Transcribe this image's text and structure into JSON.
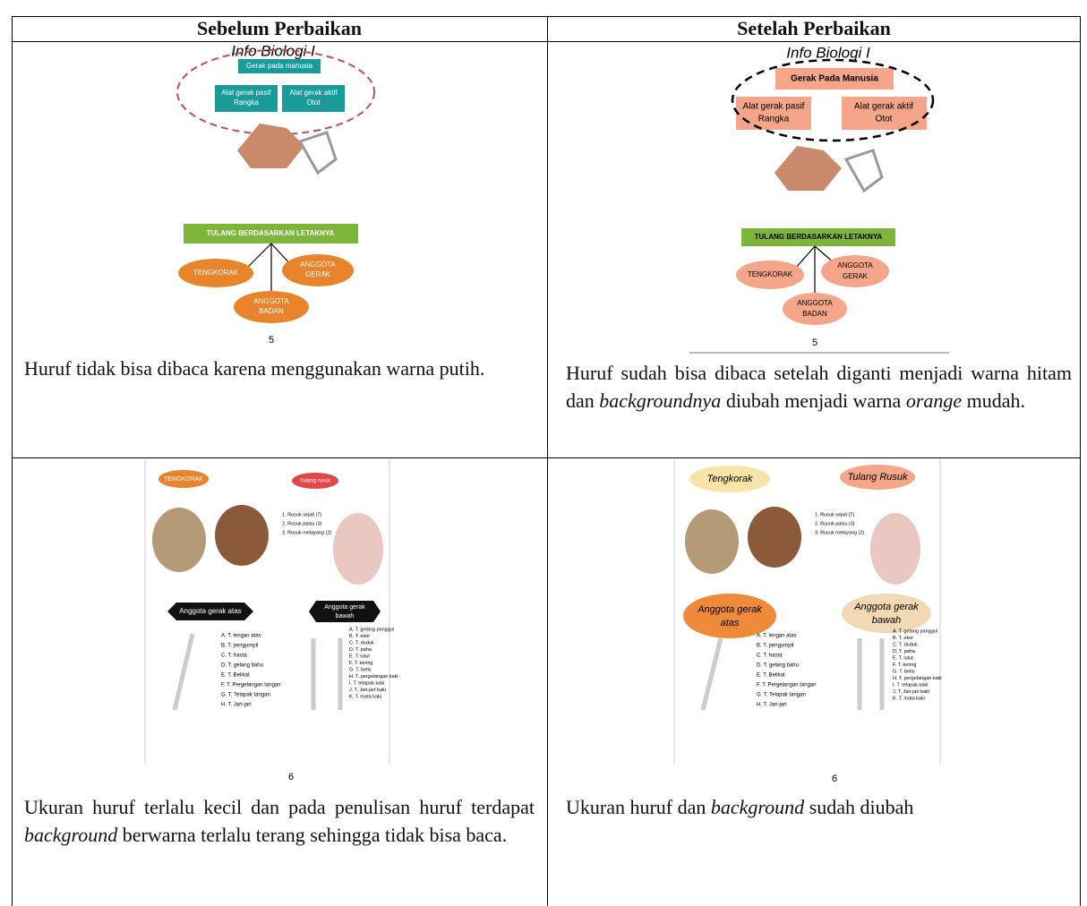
{
  "table": {
    "headers": [
      "Sebelum Perbaikan",
      "Setelah Perbaikan"
    ],
    "rows": [
      [
        {
          "slide": {
            "title": "Info Biologi I",
            "main": "Gerak pada manusia",
            "left_box": [
              "Alat gerak pasif",
              "Rangka"
            ],
            "right_box": [
              "Alat gerak aktif",
              "Otot"
            ],
            "banner": "TULANG BERDASARKAN LETAKNYA",
            "nodes": [
              "TENGKORAK",
              [
                "ANGGOTA",
                "GERAK"
              ],
              [
                "ANGGOTA",
                "BADAN"
              ]
            ],
            "page": "5"
          },
          "caption": [
            {
              "text": "Huruf tidak bisa dibaca karena menggunakan warna putih."
            }
          ]
        },
        {
          "slide": {
            "title": "Info Biologi I",
            "main": "Gerak Pada Manusia",
            "left_box": [
              "Alat gerak pasif",
              "Rangka"
            ],
            "right_box": [
              "Alat gerak aktif",
              "Otot"
            ],
            "banner": "TULANG BERDASARKAN LETAKNYA",
            "nodes": [
              "TENGKORAK",
              [
                "ANGGOTA",
                "GERAK"
              ],
              [
                "ANGGOTA",
                "BADAN"
              ]
            ],
            "page": "5"
          },
          "caption": [
            {
              "text": "Huruf sudah bisa dibaca setelah diganti menjadi warna hitam dan "
            },
            {
              "text": "backgroundnya",
              "italic": true
            },
            {
              "text": " diubah menjadi warna "
            },
            {
              "text": "orange",
              "italic": true
            },
            {
              "text": " mudah."
            }
          ]
        }
      ],
      [
        {
          "slide": {
            "skull": "TENGKORAK",
            "ribs": "Tulang rusuk",
            "rib_list": [
              "1. Rusuk sejati (7)",
              "2. Rusuk palsu (3)",
              "3. Rusuk melayang (2)"
            ],
            "upper": "Anggota gerak atas",
            "lower": [
              "Anggota gerak",
              "bawah"
            ],
            "upper_list": [
              "A. T. lengan atas",
              "B. T. pengumpil",
              "C. T. hasta",
              "D. T. gelang bahu",
              "E. T. Belikat",
              "F. T. Pergelangan tangan",
              "G. T. Telapak tangan",
              "H. T. Jari-jari"
            ],
            "lower_list": [
              "A. T. gelang panggul",
              "B. T. ekor",
              "C. T. duduk",
              "D. T. paha",
              "E. T. lutut",
              "F. T. kering",
              "G. T. betis",
              "H. T. pergelangan kaki",
              "I. T. telapak kaki",
              "J. T. Jari-jari kaki",
              "K. T. mata kaki"
            ],
            "page": "6"
          },
          "caption": [
            {
              "text": "Ukuran huruf terlalu kecil dan pada penulisan huruf terdapat "
            },
            {
              "text": "background",
              "italic": true
            },
            {
              "text": " berwarna terlalu terang sehingga tidak bisa baca."
            }
          ]
        },
        {
          "slide": {
            "skull": "Tengkorak",
            "ribs": "Tulang Rusuk",
            "rib_list": [
              "1. Rusuk sejati (7)",
              "2. Rusuk palsu (3)",
              "3. Rusuk melayang (2)"
            ],
            "upper": [
              "Anggota gerak",
              "atas"
            ],
            "lower": [
              "Anggota gerak",
              "bawah"
            ],
            "upper_list": [
              "A. T. lengan atas",
              "B. T. pengumpil",
              "C. T. hasta",
              "D. T. gelang bahu",
              "E. T. Belikat",
              "F. T. Pergelangan tangan",
              "G. T. Telapak tangan",
              "H. T. Jari-jari"
            ],
            "lower_list": [
              "A. T. gelang panggul",
              "B. T. ekor",
              "C. T. duduk",
              "D. T. paha",
              "E. T. lutut",
              "F. T. kering",
              "G. T. betis",
              "H. T. pergelangan kaki",
              "I. T. telapak kaki",
              "J. T. Jari-jari kaki",
              "K. T. mata kaki"
            ],
            "page": "6"
          },
          "caption": [
            {
              "text": "Ukuran huruf dan "
            },
            {
              "text": "background",
              "italic": true
            },
            {
              "text": " sudah diubah"
            }
          ]
        }
      ]
    ]
  }
}
